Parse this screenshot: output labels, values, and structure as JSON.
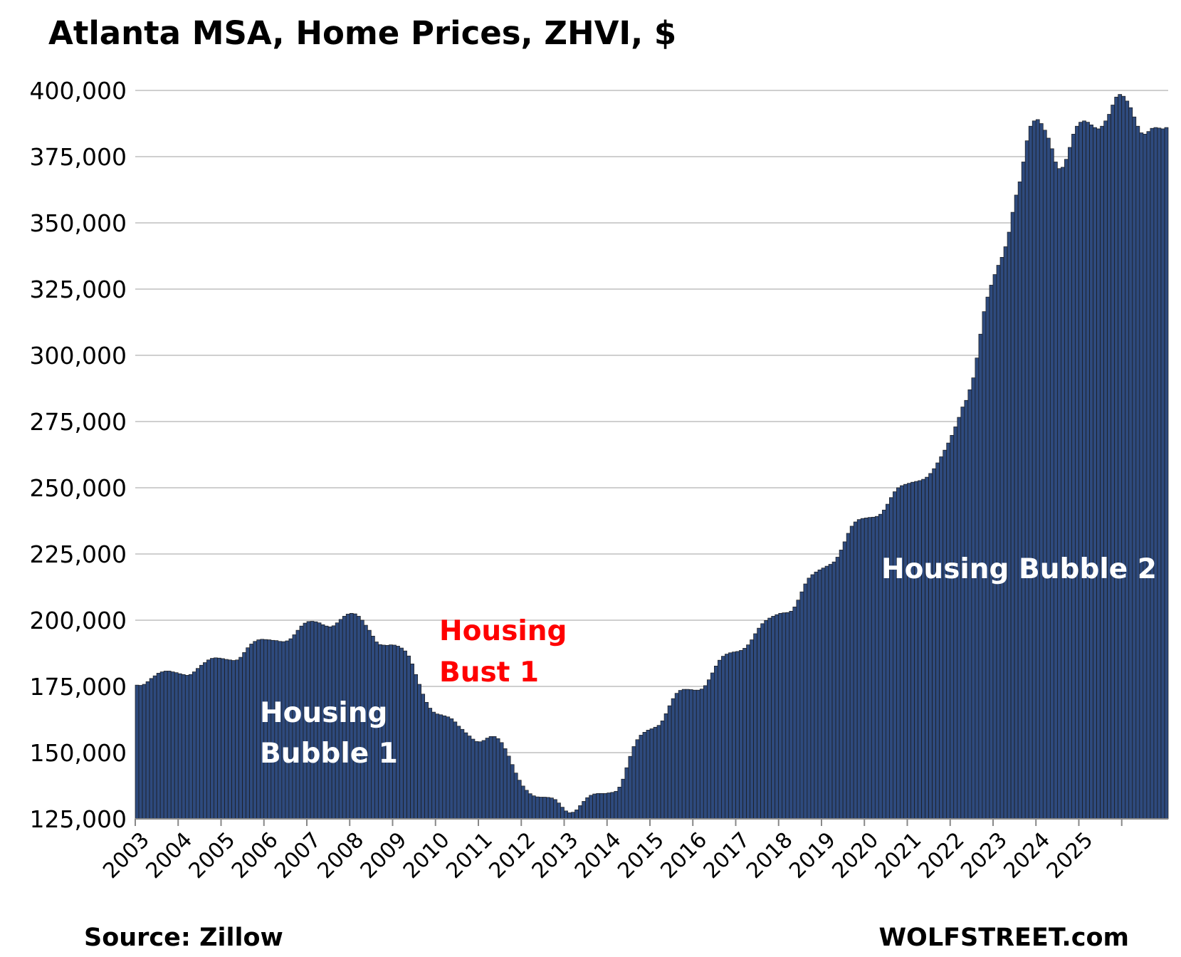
{
  "chart_data": {
    "type": "bar",
    "title": "Atlanta MSA, Home Prices, ZHVI, $",
    "xlabel": "",
    "ylabel": "",
    "ylim": [
      125000,
      400000
    ],
    "yticks": [
      125000,
      150000,
      175000,
      200000,
      225000,
      250000,
      275000,
      300000,
      325000,
      350000,
      375000,
      400000
    ],
    "ytick_labels": [
      "125,000",
      "150,000",
      "175,000",
      "200,000",
      "225,000",
      "250,000",
      "275,000",
      "300,000",
      "325,000",
      "350,000",
      "375,000",
      "400,000"
    ],
    "xtick_labels": [
      "2003",
      "2004",
      "2005",
      "2006",
      "2007",
      "2008",
      "2009",
      "2010",
      "2011",
      "2012",
      "2013",
      "2014",
      "2015",
      "2016",
      "2017",
      "2018",
      "2019",
      "2020",
      "2021",
      "2022",
      "2023",
      "2024",
      "2025"
    ],
    "start": "2003-01",
    "frequency": "monthly",
    "grid": true,
    "legend": "none",
    "bar_color": "#2e4a7d",
    "bar_edge_color": "#1a1a1a",
    "values": [
      175500,
      175400,
      175800,
      176800,
      178000,
      179000,
      180000,
      180500,
      180800,
      180800,
      180500,
      180200,
      179800,
      179500,
      179200,
      179500,
      180500,
      181800,
      183000,
      184000,
      185000,
      185600,
      185800,
      185700,
      185500,
      185200,
      185000,
      184800,
      185000,
      186000,
      187800,
      189600,
      191000,
      192000,
      192600,
      192800,
      192700,
      192600,
      192400,
      192300,
      192000,
      191900,
      192200,
      193000,
      194500,
      196200,
      197800,
      198900,
      199500,
      199600,
      199400,
      199000,
      198300,
      197800,
      197500,
      197900,
      199000,
      200300,
      201500,
      202300,
      202600,
      202400,
      201500,
      200000,
      198100,
      196200,
      194000,
      191800,
      190800,
      190600,
      190500,
      190700,
      190600,
      190200,
      189500,
      188400,
      186500,
      183500,
      179500,
      175800,
      172100,
      169000,
      166800,
      165300,
      164600,
      164300,
      163900,
      163500,
      162800,
      161600,
      160000,
      158800,
      157500,
      156300,
      155100,
      154200,
      154100,
      154600,
      155500,
      156100,
      156100,
      155300,
      153800,
      151500,
      148700,
      145500,
      142300,
      139600,
      137400,
      135800,
      134500,
      133700,
      133300,
      133200,
      133200,
      133100,
      132900,
      132300,
      131000,
      129400,
      128000,
      127300,
      127500,
      128400,
      130000,
      131600,
      133000,
      133900,
      134400,
      134600,
      134600,
      134600,
      134800,
      135000,
      135400,
      137000,
      140000,
      144300,
      148600,
      152300,
      154900,
      156600,
      157700,
      158500,
      159000,
      159600,
      160300,
      162000,
      164700,
      167700,
      170400,
      172400,
      173500,
      173900,
      173900,
      173800,
      173600,
      173600,
      174000,
      175300,
      177500,
      180100,
      182700,
      184900,
      186400,
      187200,
      187700,
      188000,
      188200,
      188600,
      189400,
      190700,
      192600,
      194900,
      197000,
      198700,
      199900,
      200800,
      201500,
      202100,
      202600,
      202800,
      202900,
      203400,
      205000,
      207600,
      210700,
      213700,
      215900,
      217200,
      218200,
      219000,
      219700,
      220400,
      221100,
      222000,
      223800,
      226500,
      229600,
      232800,
      235500,
      237100,
      238000,
      238400,
      238600,
      238800,
      238900,
      239200,
      240000,
      241600,
      243800,
      246300,
      248500,
      250000,
      250800,
      251300,
      251700,
      252100,
      252400,
      252700,
      253200,
      254000,
      255400,
      257200,
      259400,
      261700,
      264200,
      266900,
      269800,
      273000,
      276600,
      280500,
      283000,
      287000,
      291500,
      299000,
      308000,
      316500,
      322000,
      326500,
      330500,
      334000,
      337000,
      341000,
      346500,
      354000,
      360500,
      365500,
      373000,
      381000,
      386500,
      388500,
      389000,
      387500,
      385000,
      382000,
      378000,
      373000,
      370500,
      371000,
      374000,
      378500,
      383500,
      386500,
      388000,
      388500,
      388000,
      387000,
      386000,
      385500,
      386500,
      388500,
      391000,
      394500,
      397500,
      398500,
      397800,
      396000,
      393500,
      390000,
      386500,
      384000,
      383500,
      384500,
      385700,
      386000,
      385800,
      385500,
      386000
    ]
  },
  "annotations": {
    "bubble1_line1": "Housing",
    "bubble1_line2": "Bubble 1",
    "bust1_line1": "Housing",
    "bust1_line2": "Bust 1",
    "bubble2": "Housing Bubble 2"
  },
  "footer": {
    "source": "Source: Zillow",
    "brand": "WOLFSTREET.com"
  },
  "colors": {
    "annotation_white": "#ffffff",
    "annotation_red": "#ff0000",
    "grid": "#cfcfcf"
  }
}
